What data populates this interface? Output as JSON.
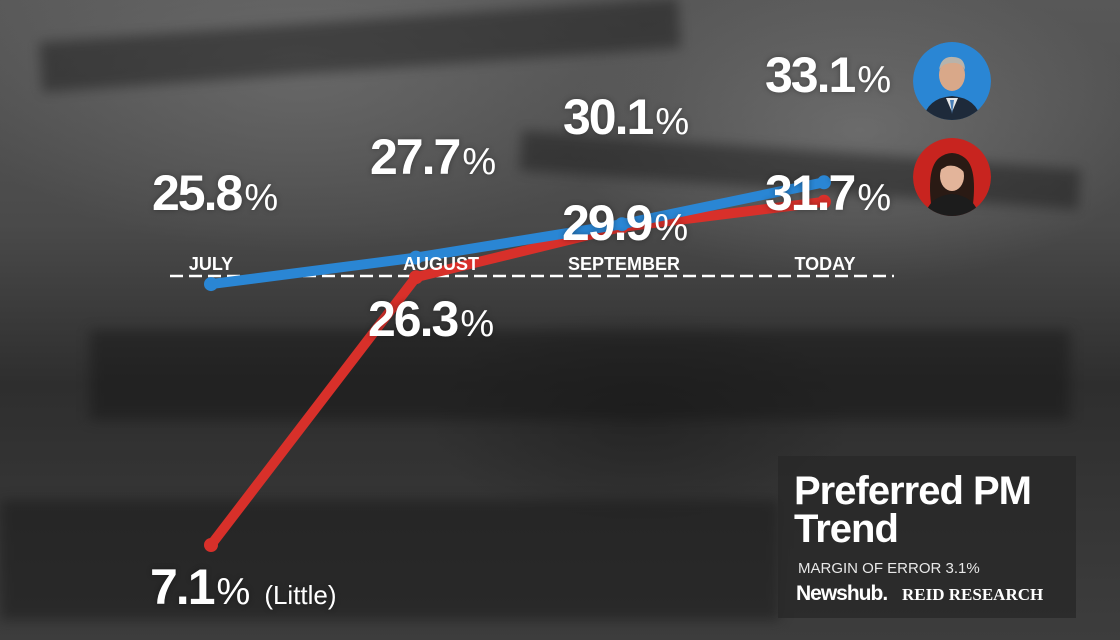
{
  "title": {
    "line1": "Preferred PM",
    "line2": "Trend",
    "margin_of_error": "MARGIN OF ERROR 3.1%",
    "brand_newshub": "Newshub.",
    "brand_reid": "REID RESEARCH"
  },
  "percent_sign": "%",
  "note_little": "(Little)",
  "colors": {
    "blue": "#2a86d4",
    "red": "#d8302a",
    "dash": "#ffffff"
  },
  "chart_data": {
    "type": "line",
    "title": "Preferred PM Trend",
    "subtitle": "MARGIN OF ERROR 3.1%",
    "categories": [
      "JULY",
      "AUGUST",
      "SEPTEMBER",
      "TODAY"
    ],
    "series": [
      {
        "color": "#2a86d4",
        "values": [
          25.8,
          27.7,
          30.1,
          33.1
        ],
        "labels": [
          "25.8",
          "27.7",
          "30.1",
          "33.1"
        ]
      },
      {
        "color": "#d8302a",
        "values": [
          7.1,
          26.3,
          29.9,
          31.7
        ],
        "labels": [
          "7.1",
          "26.3",
          "29.9",
          "31.7"
        ]
      }
    ],
    "annotations": [
      "(Little)"
    ],
    "grid": false,
    "legend": "none"
  }
}
